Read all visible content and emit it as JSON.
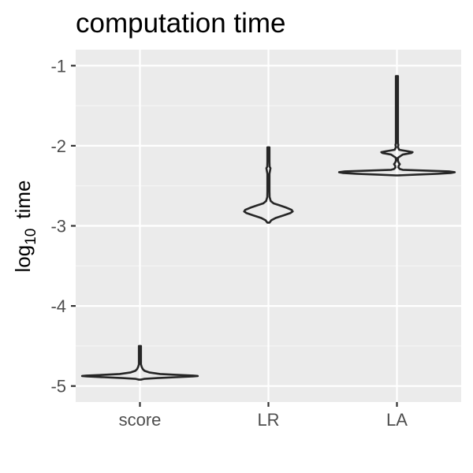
{
  "chart_data": {
    "type": "violin",
    "title": "computation time",
    "ylabel": {
      "main": "log",
      "subscript": "10",
      "suffix": "time"
    },
    "xlabel": "",
    "categories": [
      "score",
      "LR",
      "LA"
    ],
    "ylim": [
      -5.2,
      -0.8
    ],
    "yticks": [
      -5,
      -4,
      -3,
      -2,
      -1
    ],
    "ytick_labels": [
      "-5",
      "-4",
      "-3",
      "-2",
      "-1"
    ],
    "grid": true,
    "violins": [
      {
        "category": "score",
        "min": -4.92,
        "max": -4.5,
        "profile": [
          [
            -4.92,
            0.0
          ],
          [
            -4.91,
            0.08
          ],
          [
            -4.9,
            0.3
          ],
          [
            -4.89,
            0.62
          ],
          [
            -4.88,
            0.92
          ],
          [
            -4.875,
            1.0
          ],
          [
            -4.87,
            0.92
          ],
          [
            -4.86,
            0.62
          ],
          [
            -4.85,
            0.35
          ],
          [
            -4.83,
            0.16
          ],
          [
            -4.81,
            0.08
          ],
          [
            -4.79,
            0.05
          ],
          [
            -4.76,
            0.03
          ],
          [
            -4.73,
            0.015
          ],
          [
            -4.7,
            0.008
          ],
          [
            -4.65,
            0.006
          ],
          [
            -4.6,
            0.005
          ],
          [
            -4.55,
            0.004
          ],
          [
            -4.5,
            0.0
          ]
        ]
      },
      {
        "category": "LR",
        "min": -2.96,
        "max": -2.02,
        "profile": [
          [
            -2.96,
            0.0
          ],
          [
            -2.93,
            0.05
          ],
          [
            -2.9,
            0.13
          ],
          [
            -2.87,
            0.26
          ],
          [
            -2.84,
            0.38
          ],
          [
            -2.82,
            0.42
          ],
          [
            -2.8,
            0.4
          ],
          [
            -2.77,
            0.3
          ],
          [
            -2.74,
            0.18
          ],
          [
            -2.72,
            0.09
          ],
          [
            -2.69,
            0.04
          ],
          [
            -2.64,
            0.02
          ],
          [
            -2.57,
            0.015
          ],
          [
            -2.5,
            0.012
          ],
          [
            -2.42,
            0.012
          ],
          [
            -2.35,
            0.015
          ],
          [
            -2.3,
            0.03
          ],
          [
            -2.28,
            0.035
          ],
          [
            -2.26,
            0.02
          ],
          [
            -2.2,
            0.008
          ],
          [
            -2.1,
            0.006
          ],
          [
            -2.02,
            0.0
          ]
        ]
      },
      {
        "category": "LA",
        "min": -2.37,
        "max": -1.13,
        "profile": [
          [
            -2.37,
            0.0
          ],
          [
            -2.36,
            0.35
          ],
          [
            -2.35,
            0.7
          ],
          [
            -2.34,
            0.93
          ],
          [
            -2.33,
            1.0
          ],
          [
            -2.32,
            0.9
          ],
          [
            -2.31,
            0.5
          ],
          [
            -2.3,
            0.1
          ],
          [
            -2.29,
            0.05
          ],
          [
            -2.27,
            0.025
          ],
          [
            -2.25,
            0.03
          ],
          [
            -2.23,
            0.05
          ],
          [
            -2.21,
            0.03
          ],
          [
            -2.19,
            0.015
          ],
          [
            -2.15,
            0.012
          ],
          [
            -2.11,
            0.1
          ],
          [
            -2.09,
            0.25
          ],
          [
            -2.08,
            0.27
          ],
          [
            -2.07,
            0.2
          ],
          [
            -2.05,
            0.04
          ],
          [
            -2.02,
            0.015
          ],
          [
            -1.99,
            0.025
          ],
          [
            -1.97,
            0.012
          ],
          [
            -1.9,
            0.01
          ],
          [
            -1.7,
            0.01
          ],
          [
            -1.5,
            0.009
          ],
          [
            -1.3,
            0.008
          ],
          [
            -1.13,
            0.0
          ]
        ]
      }
    ]
  }
}
